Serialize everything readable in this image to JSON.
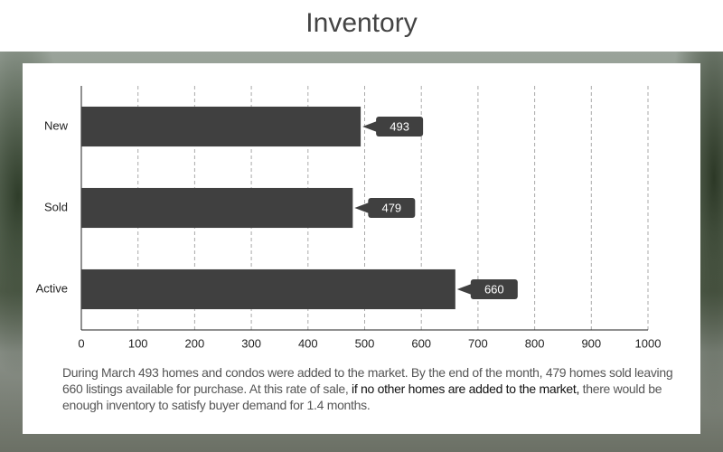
{
  "chart_data": {
    "type": "hbar",
    "title": "Inventory",
    "categories": [
      "New",
      "Sold",
      "Active"
    ],
    "values": [
      493,
      479,
      660
    ],
    "color": "#404040",
    "xlim": [
      0,
      1000
    ],
    "xticks": [
      0,
      100,
      200,
      300,
      400,
      500,
      600,
      700,
      800,
      900,
      1000
    ],
    "grid": true
  },
  "description": [
    "During March 493 homes and condos were added to the market. By the end of the month, 479 homes sold leaving 660 listings available for purchase. At this rate of sale, ",
    "if no other homes are added to the market,",
    " there would be enough inventory to satisfy buyer demand for 1.4 months."
  ]
}
